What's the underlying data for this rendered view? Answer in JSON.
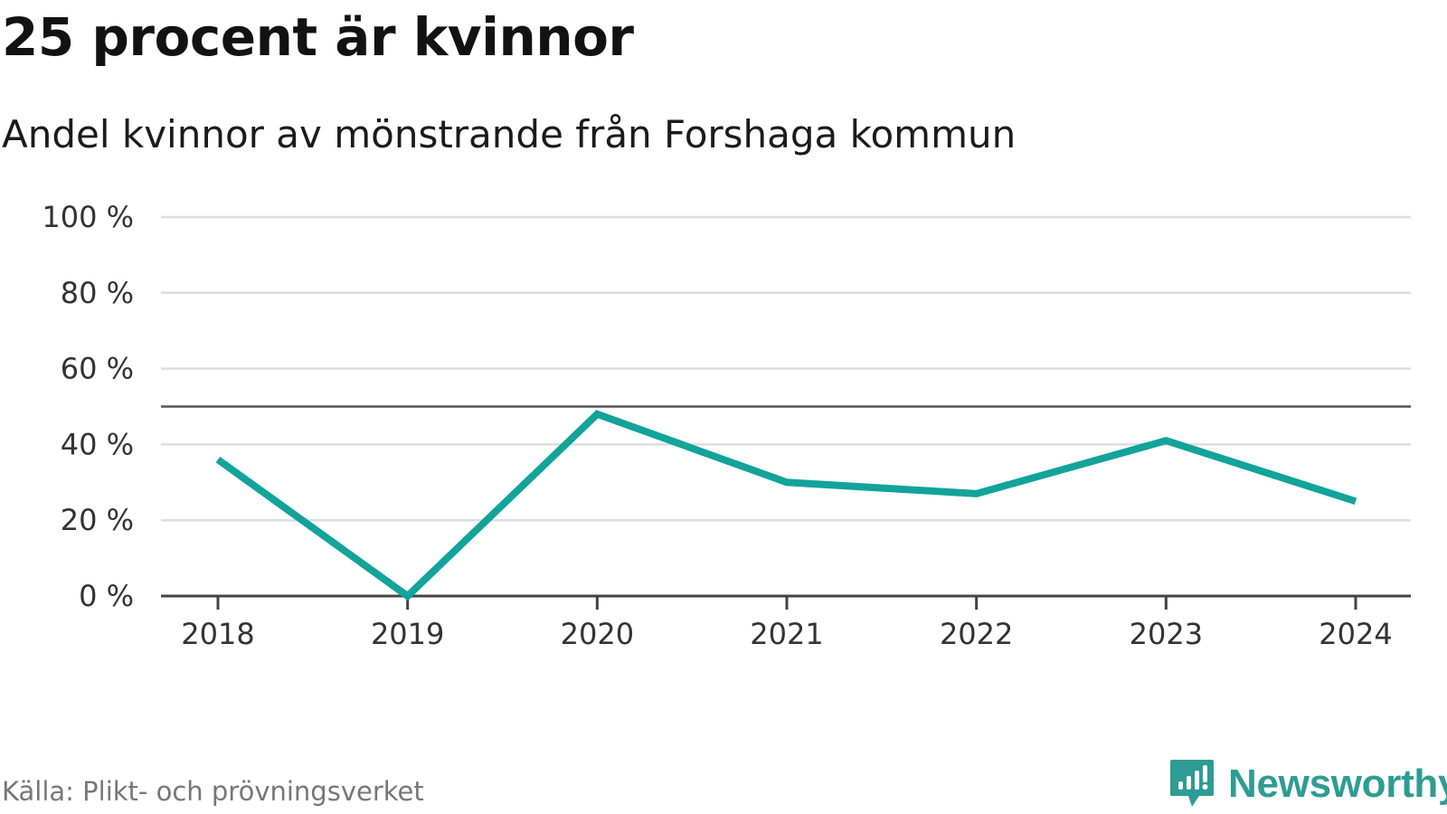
{
  "header": {
    "title": "25 procent är kvinnor",
    "subtitle": "Andel kvinnor av mönstrande från Forshaga kommun"
  },
  "footer": {
    "source": "Källa: Plikt- och prövningsverket",
    "brand": "Newsworthy",
    "brand_icon": "chart-speech-bubble-icon"
  },
  "colors": {
    "line": "#12a39a",
    "grid": "#dddddd",
    "axis": "#444444",
    "reference": "#555555",
    "brand": "#2e9c94"
  },
  "chart_data": {
    "type": "line",
    "title": "25 procent är kvinnor",
    "subtitle": "Andel kvinnor av mönstrande från Forshaga kommun",
    "x": [
      "2018",
      "2019",
      "2020",
      "2021",
      "2022",
      "2023",
      "2024"
    ],
    "series": [
      {
        "values": [
          36,
          0,
          48,
          30,
          27,
          41,
          25
        ]
      }
    ],
    "yticks": [
      "0 %",
      "20 %",
      "40 %",
      "60 %",
      "80 %",
      "100 %"
    ],
    "ylim": [
      0,
      100
    ],
    "reference_line": 50,
    "grid": true,
    "legend": "none"
  }
}
